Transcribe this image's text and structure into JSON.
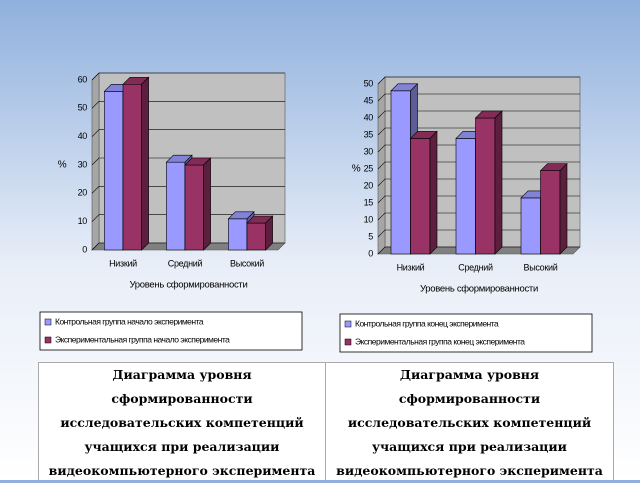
{
  "chart_data": [
    {
      "type": "bar",
      "y_label": "%",
      "x_label": "Уровень сформированности",
      "categories": [
        "Низкий",
        "Средний",
        "Высокий"
      ],
      "series": [
        {
          "name": "Контрольная группа начало эксперимента",
          "color": "#9999ff",
          "values": [
            56,
            31,
            11
          ]
        },
        {
          "name": "Экспериментальная группа начало эксперимента",
          "color": "#993366",
          "values": [
            58.5,
            30,
            9.5
          ]
        }
      ],
      "ylim": [
        0,
        60
      ],
      "yticks": [
        0,
        10,
        20,
        30,
        40,
        50,
        60
      ],
      "grid": true
    },
    {
      "type": "bar",
      "y_label": "%",
      "x_label": "Уровень сформированности",
      "categories": [
        "Низкий",
        "Средний",
        "Высокий"
      ],
      "series": [
        {
          "name": "Контрольная группа конец эксперимента",
          "color": "#9999ff",
          "values": [
            48,
            34,
            16.5
          ]
        },
        {
          "name": "Экспериментальная группа конец эксперимента",
          "color": "#993366",
          "values": [
            34,
            40,
            24.5
          ]
        }
      ],
      "ylim": [
        0,
        50
      ],
      "yticks": [
        0,
        5,
        10,
        15,
        20,
        25,
        30,
        35,
        40,
        45,
        50
      ],
      "grid": true
    }
  ],
  "captions": [
    "Диаграмма уровня сформированности исследовательских компетенций учащихся при реализации видеокомпьютерного эксперимента",
    "Диаграмма уровня сформированности исследовательских компетенций учащихся при реализации видеокомпьютерного эксперимента"
  ]
}
